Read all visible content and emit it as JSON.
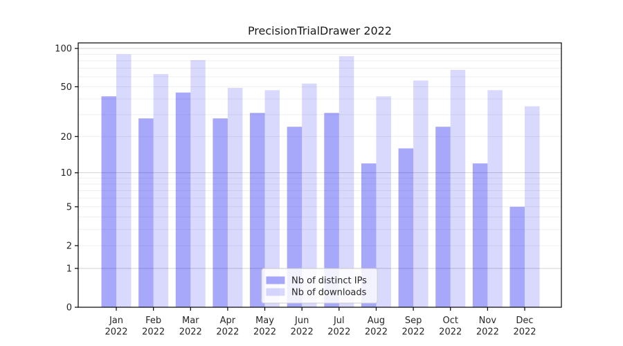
{
  "figure": {
    "background": "#ffffff"
  },
  "chart_data": {
    "type": "bar",
    "title": "PrecisionTrialDrawer 2022",
    "categories": [
      "Jan",
      "Feb",
      "Mar",
      "Apr",
      "May",
      "Jun",
      "Jul",
      "Aug",
      "Sep",
      "Oct",
      "Nov",
      "Dec"
    ],
    "category_year": "2022",
    "series": [
      {
        "name": "Nb of distinct IPs",
        "color": "rgba(0,0,240,0.34)",
        "values": [
          42,
          28,
          45,
          28,
          31,
          24,
          31,
          12,
          16,
          24,
          12,
          5
        ]
      },
      {
        "name": "Nb of downloads",
        "color": "rgba(0,0,240,0.15)",
        "values": [
          90,
          63,
          81,
          49,
          47,
          53,
          87,
          42,
          56,
          68,
          47,
          35
        ]
      }
    ],
    "xlabel": "",
    "ylabel": "",
    "yscale": "log1p",
    "ylim": [
      0,
      100
    ],
    "yticks": [
      0,
      1,
      2,
      5,
      10,
      20,
      50,
      100
    ],
    "major_gridlines": [
      1,
      10,
      100
    ],
    "minor_gridlines": [
      2,
      3,
      4,
      5,
      6,
      7,
      8,
      9,
      20,
      30,
      40,
      50,
      60,
      70,
      80,
      90
    ],
    "grid": "horizontal",
    "legend_position": "lower center",
    "colors": {
      "axis_frame": "#000000",
      "tick_label": "#262626",
      "title_text": "#1a1a1a",
      "grid_major": "#d2d2d2",
      "grid_minor": "#efefef",
      "legend_border": "#cccccc",
      "legend_background": "rgba(255,255,255,0.85)"
    }
  }
}
